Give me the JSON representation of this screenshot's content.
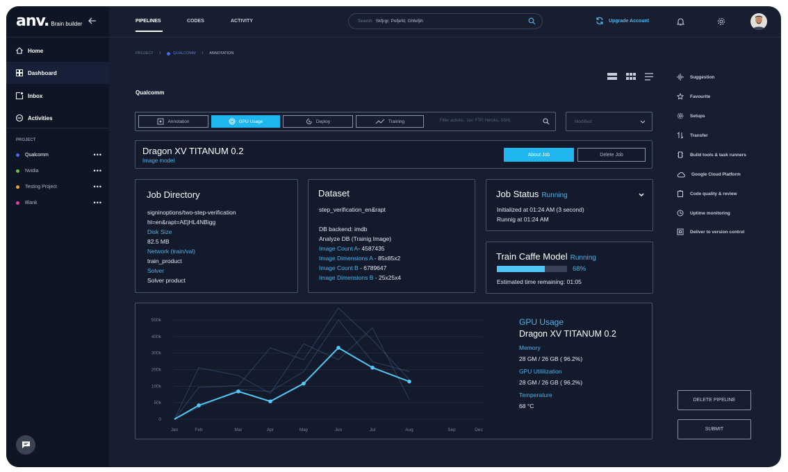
{
  "brand": {
    "mark": "anv.",
    "sub": "Brain builder"
  },
  "sidebar": {
    "nav": [
      {
        "label": "Home",
        "icon": "home-icon"
      },
      {
        "label": "Dashboard",
        "icon": "dashboard-icon"
      },
      {
        "label": "Inbox",
        "icon": "inbox-icon"
      },
      {
        "label": "Activities",
        "icon": "activity-icon"
      }
    ],
    "project_heading": "PROJECT",
    "projects": [
      {
        "label": "Qualcomm",
        "color": "#4a68e8"
      },
      {
        "label": "Nvidia",
        "color": "#6cc04a"
      },
      {
        "label": "Testing Project",
        "color": "#f0a030"
      },
      {
        "label": "Blank",
        "color": "#e040a0"
      }
    ],
    "more": "•••"
  },
  "topbar": {
    "tabs": [
      "PIPELINES",
      "CODES",
      "ACTIVITY"
    ],
    "search": {
      "label": "Search",
      "value": "Skfjrgr, Pefjefd, Ghfefjih"
    },
    "upgrade": "Upgrade Account"
  },
  "breadcrumb": {
    "root": "PROJECT",
    "project": "QUALCOMM",
    "current": "ANNOTATION",
    "sep": "/"
  },
  "page_title": "Qualcomm",
  "toolbar": {
    "buttons": [
      "Annotation",
      "GPU Usage",
      "Deploy",
      "Training"
    ],
    "filter_placeholder": "Filter actions.. (ex: FTP, Heroku, SSH)",
    "sort": "Modified"
  },
  "job": {
    "title": "Dragon XV TITANUM  0.2",
    "subtitle": "Image model",
    "about_label": "About Job",
    "delete_label": "Delete Job"
  },
  "job_directory": {
    "title": "Job Directory",
    "path1": "signinoptions/two-step-verification",
    "path2": "hl=en&rapt=AEjHL4NBigg",
    "disk_label": "Disk Size",
    "disk_value": "82.5 MB",
    "network_label": "Network (train/val)",
    "network_value": "train_product",
    "solver_label": "Solver",
    "solver_value": "Solver product"
  },
  "dataset": {
    "title": "Dataset",
    "name": "step_verification_en&rapt",
    "backend": "DB backend: imdb",
    "analyze": "Analyze DB (Trainig Image)",
    "count_a_label": "Image Count A",
    "count_a_value": "- 4587435",
    "dim_a_label": "Image Dimensions A",
    "dim_a_value": " - 85x85x2",
    "count_b_label": "Image Count B",
    "count_b_value": " - 6789647",
    "dim_b_label": "Image Dimensions B",
    "dim_b_value": " - 25x25x4"
  },
  "job_status": {
    "title": "Job Status",
    "state": "Running",
    "initialized": "Initialized at 01:24 AM (3 second)",
    "running": "Runnig at 01:24 AM"
  },
  "train_model": {
    "title": "Train Caffe Model",
    "state": "Running",
    "progress": 0.68,
    "progress_label": "68%",
    "estimate": "Estimated time remaining: 01:05"
  },
  "gpu": {
    "title": "GPU Usage",
    "model": "Dragon XV TITANUM  0.2",
    "memory_label": "Memory",
    "memory_value": "28 GM / 26 GB ( 96.2%)",
    "util_label": "GPU Utililization",
    "util_value": "28 GM / 26 GB ( 96.2%)",
    "temp_label": "Temperature",
    "temp_value": "68 °C"
  },
  "chart_data": {
    "type": "line",
    "categories": [
      "Jan",
      "Feb",
      "Mar",
      "Apr",
      "May",
      "Jun",
      "Jul",
      "Aug",
      "Sep",
      "Dec"
    ],
    "y_ticks": [
      "0",
      "50k",
      "100k",
      "200k",
      "300k",
      "400k",
      "500k"
    ],
    "ylim": [
      0,
      500000
    ],
    "series": [
      {
        "values": [
          0,
          70000,
          140000,
          90000,
          180000,
          360000,
          260000,
          190000,
          8000,
          0
        ],
        "color": "#56c8f5"
      }
    ],
    "background_series": [
      {
        "values": [
          0,
          160000,
          170000,
          360000,
          300000,
          560000,
          400000,
          200000,
          150000,
          0
        ],
        "color": "#3a5a82"
      },
      {
        "values": [
          0,
          260000,
          220000,
          130000,
          380000,
          300000,
          460000,
          100000,
          30000,
          0
        ],
        "color": "#3a5a82"
      },
      {
        "values": [
          0,
          60000,
          150000,
          140000,
          240000,
          500000,
          290000,
          240000,
          40000,
          0
        ],
        "color": "#3a5a82"
      }
    ],
    "grid": true
  },
  "right_panel": {
    "items": [
      {
        "label": "Suggestion",
        "icon": "waveform-icon"
      },
      {
        "label": "Favourite",
        "icon": "star-icon"
      },
      {
        "label": "Setups",
        "icon": "gear-icon"
      },
      {
        "label": "Transfer",
        "icon": "transfer-icon"
      },
      {
        "label": "Build tools & task runners",
        "icon": "build-icon"
      },
      {
        "label": "Google Cloud Platform",
        "icon": "cloud-icon"
      },
      {
        "label": "Code quality & review",
        "icon": "clipboard-icon"
      },
      {
        "label": "Uptime monitoring",
        "icon": "uptime-icon"
      },
      {
        "label": "Deliver to version control",
        "icon": "deliver-icon"
      }
    ],
    "delete_pipeline": "DELETE PIPELINE",
    "submit": "SUBMIT"
  }
}
